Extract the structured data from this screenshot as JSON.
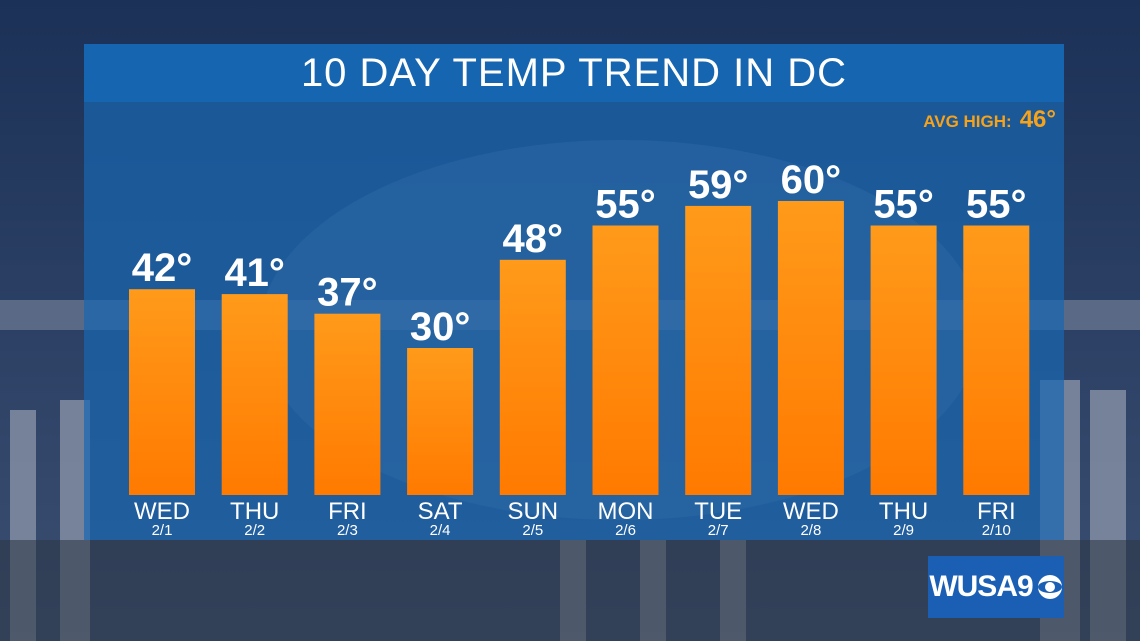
{
  "title": "10 DAY TEMP TREND IN DC",
  "avg_high": {
    "label": "AVG HIGH:",
    "value": "46°"
  },
  "logo": {
    "text": "WUSA9"
  },
  "colors": {
    "bar_top": "#ff9a1a",
    "bar_bottom": "#ff7a00",
    "panel": "#1565b0",
    "accent": "#f7a21b"
  },
  "chart_data": {
    "type": "bar",
    "title": "10 DAY TEMP TREND IN DC",
    "categories": [
      "WED",
      "THU",
      "FRI",
      "SAT",
      "SUN",
      "MON",
      "TUE",
      "WED",
      "THU",
      "FRI"
    ],
    "dates": [
      "2/1",
      "2/2",
      "2/3",
      "2/4",
      "2/5",
      "2/6",
      "2/7",
      "2/8",
      "2/9",
      "2/10"
    ],
    "values": [
      42,
      41,
      37,
      30,
      48,
      55,
      59,
      60,
      55,
      55
    ],
    "value_labels": [
      "42°",
      "41°",
      "37°",
      "30°",
      "48°",
      "55°",
      "59°",
      "60°",
      "55°",
      "55°"
    ],
    "xlabel": "",
    "ylabel": "",
    "grid": false,
    "legend": "none"
  }
}
